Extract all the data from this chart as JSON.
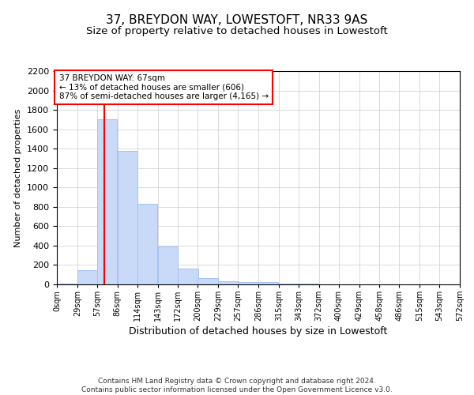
{
  "title": "37, BREYDON WAY, LOWESTOFT, NR33 9AS",
  "subtitle": "Size of property relative to detached houses in Lowestoft",
  "xlabel": "Distribution of detached houses by size in Lowestoft",
  "ylabel": "Number of detached properties",
  "footer_line1": "Contains HM Land Registry data © Crown copyright and database right 2024.",
  "footer_line2": "Contains public sector information licensed under the Open Government Licence v3.0.",
  "bar_left_edges": [
    0,
    29,
    57,
    86,
    114,
    143,
    172,
    200,
    229,
    257,
    286,
    315,
    343,
    372,
    400,
    429,
    458,
    486,
    515,
    543
  ],
  "bar_heights": [
    10,
    150,
    1700,
    1380,
    830,
    390,
    160,
    65,
    30,
    25,
    25,
    5,
    5,
    0,
    0,
    0,
    0,
    0,
    0,
    0
  ],
  "bar_width": 28.5,
  "bar_color": "#c9daf8",
  "bar_edge_color": "#a4c2f4",
  "bar_edge_width": 0.7,
  "red_line_x": 67,
  "ylim": [
    0,
    2200
  ],
  "yticks": [
    0,
    200,
    400,
    600,
    800,
    1000,
    1200,
    1400,
    1600,
    1800,
    2000,
    2200
  ],
  "xlim": [
    0,
    572
  ],
  "x_tick_labels": [
    "0sqm",
    "29sqm",
    "57sqm",
    "86sqm",
    "114sqm",
    "143sqm",
    "172sqm",
    "200sqm",
    "229sqm",
    "257sqm",
    "286sqm",
    "315sqm",
    "343sqm",
    "372sqm",
    "400sqm",
    "429sqm",
    "458sqm",
    "486sqm",
    "515sqm",
    "543sqm",
    "572sqm"
  ],
  "x_tick_positions": [
    0,
    29,
    57,
    86,
    114,
    143,
    172,
    200,
    229,
    257,
    286,
    315,
    343,
    372,
    400,
    429,
    458,
    486,
    515,
    543,
    572
  ],
  "annotation_title": "37 BREYDON WAY: 67sqm",
  "annotation_line2": "← 13% of detached houses are smaller (606)",
  "annotation_line3": "87% of semi-detached houses are larger (4,165) →",
  "annotation_box_color": "white",
  "annotation_box_edge": "red",
  "grid_color": "#cccccc",
  "background_color": "white",
  "title_fontsize": 11,
  "subtitle_fontsize": 9.5,
  "ylabel_fontsize": 8,
  "xlabel_fontsize": 9,
  "tick_fontsize_y": 8,
  "tick_fontsize_x": 7,
  "annotation_fontsize": 7.5,
  "footer_fontsize": 6.5
}
